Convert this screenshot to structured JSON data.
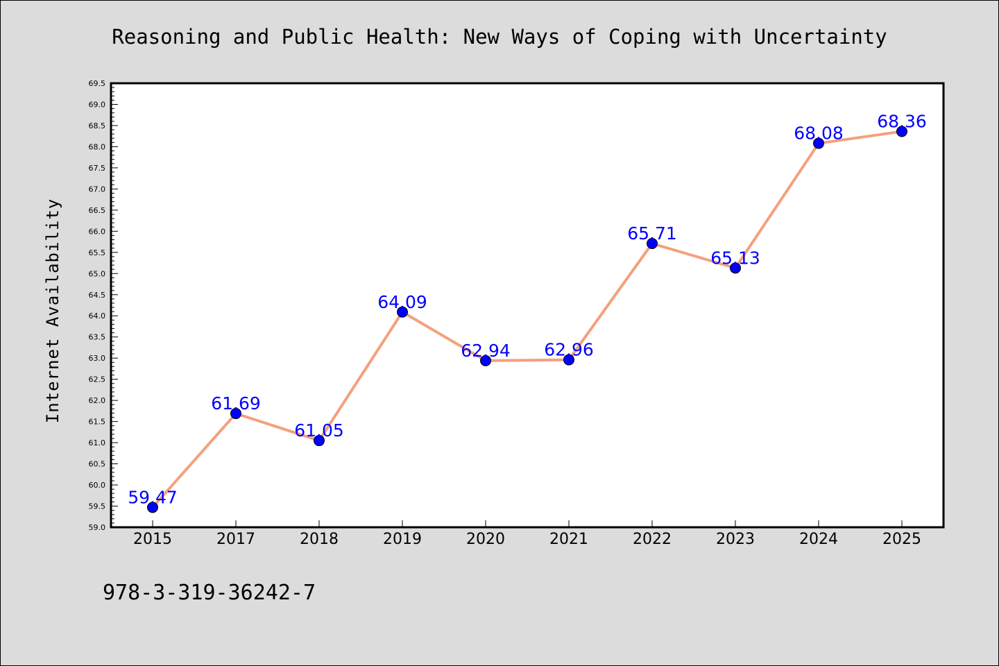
{
  "chart_data": {
    "type": "line",
    "title": "Reasoning and Public Health: New Ways of Coping with Uncertainty",
    "xlabel": "",
    "ylabel": "Internet Availability",
    "categories": [
      "2015",
      "2017",
      "2018",
      "2019",
      "2020",
      "2021",
      "2022",
      "2023",
      "2024",
      "2025"
    ],
    "values": [
      59.47,
      61.69,
      61.05,
      64.09,
      62.94,
      62.96,
      65.71,
      65.13,
      68.08,
      68.36
    ],
    "data_labels": [
      "59.47",
      "61.69",
      "61.05",
      "64.09",
      "62.94",
      "62.96",
      "65.71",
      "65.13",
      "68.08",
      "68.36"
    ],
    "ylim": [
      59.0,
      69.5
    ],
    "yticks": [
      "59.0",
      "59.5",
      "60.0",
      "60.5",
      "61.0",
      "61.5",
      "62.0",
      "62.5",
      "63.0",
      "63.5",
      "64.0",
      "64.5",
      "65.0",
      "65.5",
      "66.0",
      "66.5",
      "67.0",
      "67.5",
      "68.0",
      "68.5",
      "69.0",
      "69.5"
    ],
    "grid": false,
    "line_color": "#f4a07e",
    "marker_color": "#0000ff",
    "label_color": "#0000ff"
  },
  "footer": {
    "isbn": "978-3-319-36242-7"
  }
}
